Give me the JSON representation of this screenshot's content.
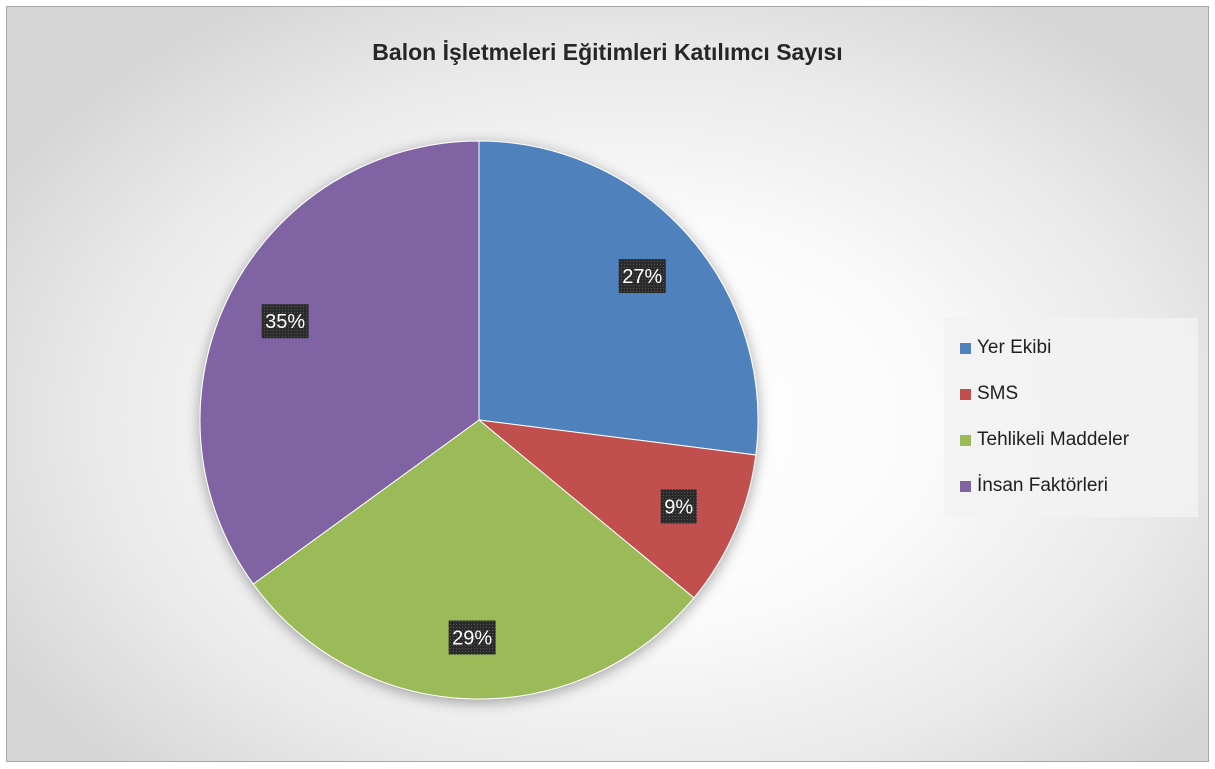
{
  "chart_data": {
    "type": "pie",
    "title": "Balon İşletmeleri Eğitimleri Katılımcı Sayısı",
    "slices": [
      {
        "label": "Yer Ekibi",
        "value": 27,
        "display": "27%",
        "color": "#4f81bd"
      },
      {
        "label": "SMS",
        "value": 9,
        "display": "9%",
        "color": "#c0504d"
      },
      {
        "label": "Tehlikeli Maddeler",
        "value": 29,
        "display": "29%",
        "color": "#9bbb59"
      },
      {
        "label": "İnsan Faktörleri",
        "value": 35,
        "display": "35%",
        "color": "#8064a2"
      }
    ],
    "legend_position": "right",
    "data_label_style": "dark-box-white-text"
  }
}
